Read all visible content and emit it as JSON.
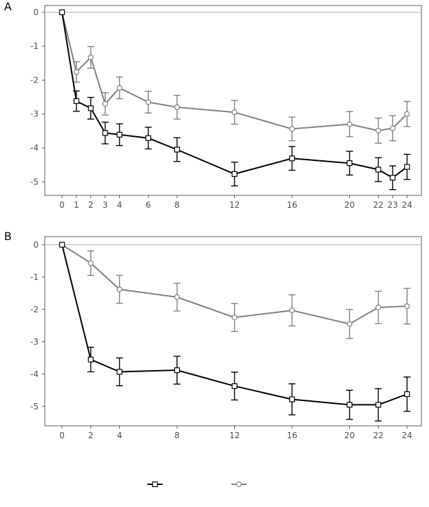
{
  "chart_data": [
    {
      "type": "line",
      "panel_label": "A",
      "x": [
        0,
        1,
        2,
        3,
        4,
        6,
        8,
        12,
        16,
        20,
        22,
        23,
        24
      ],
      "xticks": [
        "0",
        "1",
        "2",
        "3",
        "4",
        "6",
        "8",
        "12",
        "16",
        "20",
        "22",
        "23",
        "24"
      ],
      "yticks": [
        "0",
        "-1",
        "-2",
        "-3",
        "-4",
        "-5"
      ],
      "ylim": [
        -5.4,
        0.2
      ],
      "xlim": [
        -1.2,
        25
      ],
      "reference_line": 0,
      "series": [
        {
          "name": "",
          "marker": "square",
          "color": "#000000",
          "values": [
            0,
            -2.62,
            -2.83,
            -3.56,
            -3.61,
            -3.71,
            -4.05,
            -4.77,
            -4.31,
            -4.45,
            -4.64,
            -4.88,
            -4.56
          ],
          "err": [
            0,
            0.3,
            0.32,
            0.32,
            0.32,
            0.32,
            0.35,
            0.35,
            0.35,
            0.35,
            0.35,
            0.35,
            0.37
          ]
        },
        {
          "name": "",
          "marker": "circle",
          "color": "#808080",
          "values": [
            0,
            -1.76,
            -1.33,
            -2.7,
            -2.23,
            -2.65,
            -2.8,
            -2.95,
            -3.44,
            -3.3,
            -3.49,
            -3.42,
            -3.0
          ],
          "err": [
            0,
            0.3,
            0.32,
            0.33,
            0.32,
            0.32,
            0.35,
            0.35,
            0.35,
            0.37,
            0.37,
            0.37,
            0.37
          ]
        }
      ]
    },
    {
      "type": "line",
      "panel_label": "B",
      "x": [
        0,
        2,
        4,
        8,
        12,
        16,
        20,
        22,
        24
      ],
      "xticks": [
        "0",
        "2",
        "4",
        "8",
        "12",
        "16",
        "20",
        "22",
        "24"
      ],
      "yticks": [
        "0",
        "-1",
        "-2",
        "-3",
        "-4",
        "-5"
      ],
      "ylim": [
        -5.6,
        0.25
      ],
      "xlim": [
        -1.2,
        25
      ],
      "reference_line": 0,
      "series": [
        {
          "name": "",
          "marker": "square",
          "color": "#000000",
          "values": [
            0,
            -3.55,
            -3.93,
            -3.88,
            -4.37,
            -4.78,
            -4.95,
            -4.95,
            -4.62
          ],
          "err": [
            0,
            0.38,
            0.43,
            0.43,
            0.43,
            0.48,
            0.45,
            0.5,
            0.53
          ]
        },
        {
          "name": "",
          "marker": "circle",
          "color": "#808080",
          "values": [
            0,
            -0.57,
            -1.38,
            -1.62,
            -2.25,
            -2.03,
            -2.45,
            -1.94,
            -1.9
          ],
          "err": [
            0,
            0.38,
            0.43,
            0.43,
            0.43,
            0.48,
            0.45,
            0.5,
            0.55
          ]
        }
      ]
    }
  ],
  "legend": {
    "placement": "bottom-center",
    "entries": [
      {
        "label": "",
        "marker": "square",
        "color": "#000000"
      },
      {
        "label": "",
        "marker": "circle",
        "color": "#808080"
      }
    ]
  }
}
